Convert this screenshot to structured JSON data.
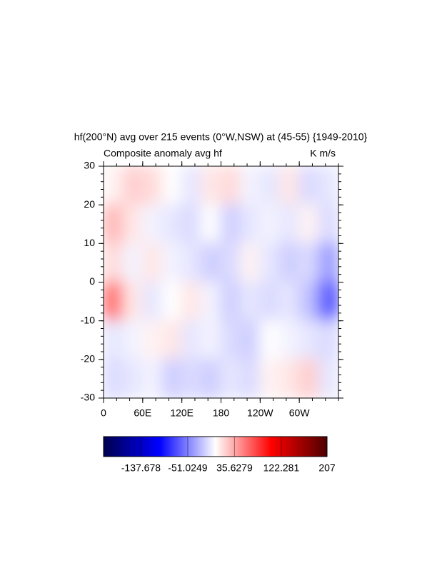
{
  "chart_data": {
    "type": "heatmap",
    "title": "hf(200°N) avg over 215 events (0°W,NSW) at (45-55) {1949-2010}",
    "subtitle_left": "Composite anomaly avg hf",
    "subtitle_right": "K m/s",
    "x": [
      15,
      45,
      75,
      105,
      135,
      165,
      195,
      225,
      255,
      285,
      315,
      345
    ],
    "y": [
      25,
      15,
      5,
      -5,
      -15,
      -25
    ],
    "z": [
      [
        5,
        20,
        15,
        0,
        -10,
        10,
        15,
        -5,
        -10,
        10,
        -15,
        -10
      ],
      [
        30,
        10,
        -5,
        -10,
        -15,
        0,
        -20,
        -10,
        -5,
        -10,
        5,
        -15
      ],
      [
        15,
        -5,
        10,
        -5,
        -10,
        -20,
        -15,
        5,
        -10,
        -20,
        -15,
        -40
      ],
      [
        60,
        10,
        -10,
        0,
        10,
        -5,
        -20,
        -10,
        -15,
        -10,
        -25,
        -70
      ],
      [
        -10,
        -5,
        5,
        10,
        -10,
        -5,
        -15,
        -20,
        0,
        -5,
        -10,
        -15
      ],
      [
        -15,
        -10,
        -5,
        -20,
        -15,
        -20,
        -10,
        -15,
        5,
        10,
        20,
        -10
      ]
    ],
    "xlim": [
      0,
      360
    ],
    "ylim": [
      -30,
      30
    ],
    "xticks": [
      0,
      {
        "value": 60,
        "label": "60E"
      },
      {
        "value": 120,
        "label": "120E"
      },
      180,
      {
        "value": 240,
        "label": "120W"
      },
      {
        "value": 300,
        "label": "60W"
      }
    ],
    "yticks": [
      30,
      20,
      10,
      0,
      -10,
      -20,
      -30
    ],
    "colorbar_lim": [
      -207,
      207
    ],
    "colorbar_ticks": [
      -137.678,
      -51.0249,
      35.6279,
      122.281,
      207
    ],
    "colors": [
      "#00004d",
      "#0000ff",
      "#ffffff",
      "#ff0000",
      "#4d0000"
    ]
  }
}
